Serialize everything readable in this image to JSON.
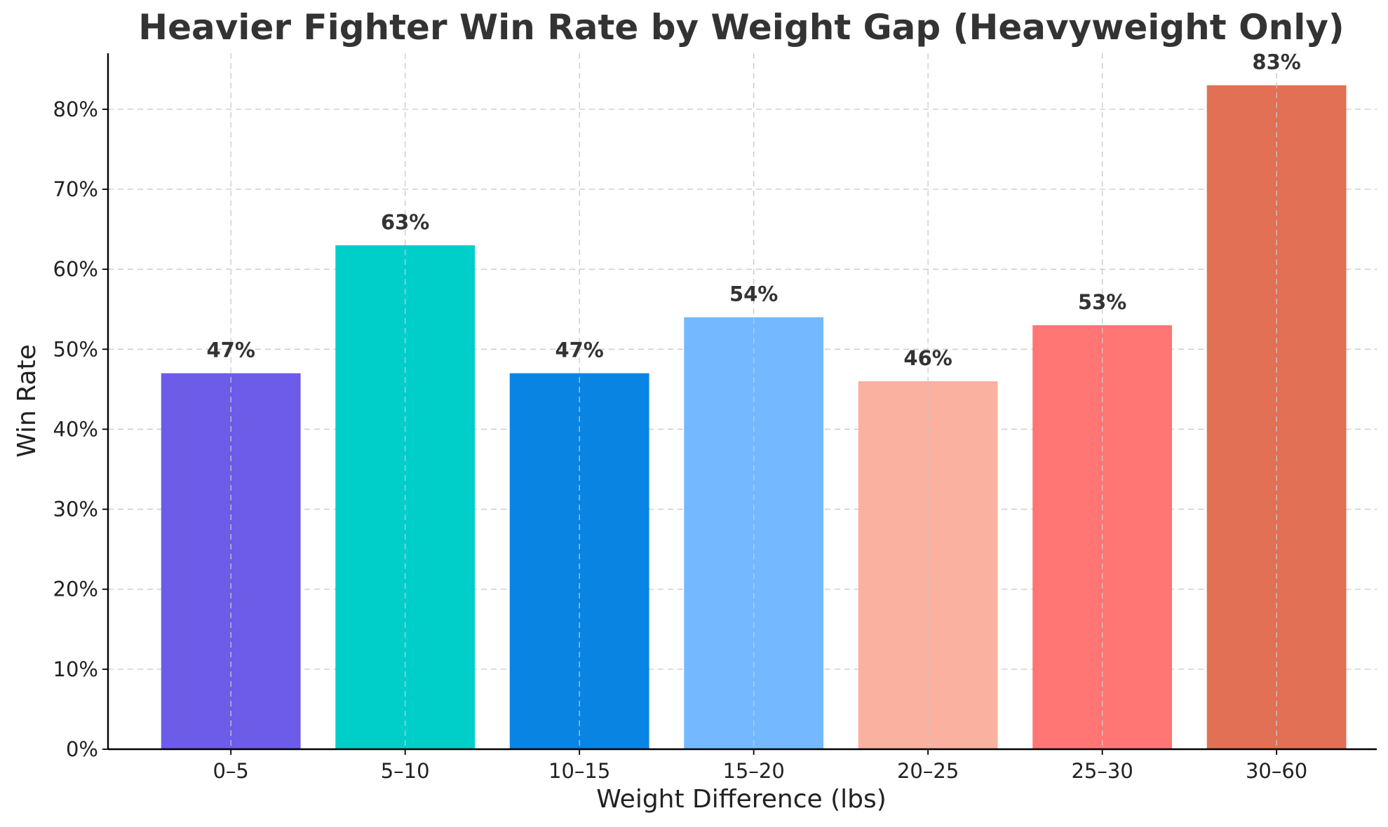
{
  "chart_data": {
    "type": "bar",
    "title": "Heavier Fighter Win Rate by Weight Gap (Heavyweight Only)",
    "xlabel": "Weight Difference (lbs)",
    "ylabel": "Win Rate",
    "categories": [
      "0–5",
      "5–10",
      "10–15",
      "15–20",
      "20–25",
      "25–30",
      "30–60"
    ],
    "values": [
      0.47,
      0.63,
      0.47,
      0.54,
      0.46,
      0.53,
      0.83
    ],
    "value_labels": [
      "47%",
      "63%",
      "47%",
      "54%",
      "46%",
      "53%",
      "83%"
    ],
    "colors": [
      "#6c5ce7",
      "#00cec9",
      "#0984e3",
      "#74b9ff",
      "#fab1a0",
      "#ff7675",
      "#e17055"
    ],
    "ylim": [
      0,
      0.87
    ],
    "yticks": [
      0,
      0.1,
      0.2,
      0.3,
      0.4,
      0.5,
      0.6,
      0.7,
      0.8
    ],
    "ytick_labels": [
      "0%",
      "10%",
      "20%",
      "30%",
      "40%",
      "50%",
      "60%",
      "70%",
      "80%"
    ],
    "grid": true
  }
}
